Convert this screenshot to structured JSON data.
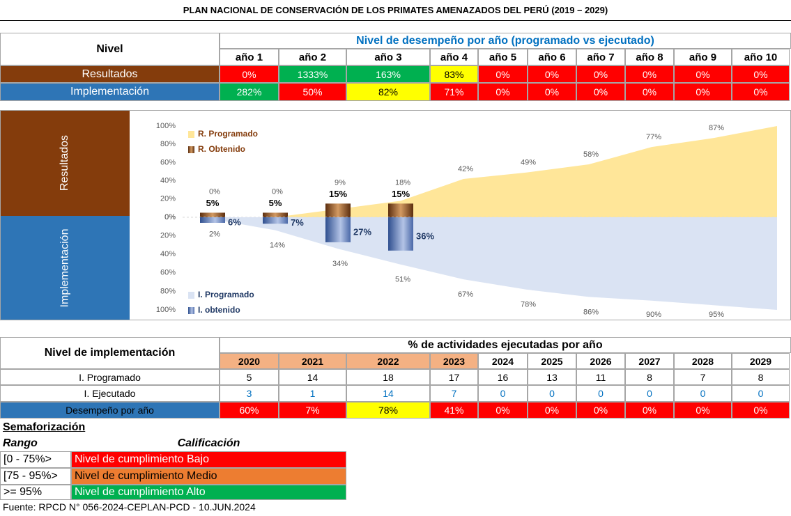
{
  "title": "PLAN NACIONAL DE CONSERVACIÓN DE LOS PRIMATES AMENAZADOS DEL PERÚ (2019 – 2029)",
  "performance_table": {
    "row_header": "Nivel",
    "group_header": "Nivel de desempeño por año (programado vs ejecutado)",
    "columns": [
      "año 1",
      "año 2",
      "año 3",
      "año 4",
      "año 5",
      "año 6",
      "año 7",
      "año 8",
      "año 9",
      "año 10"
    ],
    "rows": [
      {
        "label": "Resultados",
        "color": "#843c0c",
        "values": [
          "0%",
          "1333%",
          "163%",
          "83%",
          "0%",
          "0%",
          "0%",
          "0%",
          "0%",
          "0%"
        ],
        "colors": [
          "#ff0000",
          "#00b050",
          "#00b050",
          "#ffff00",
          "#ff0000",
          "#ff0000",
          "#ff0000",
          "#ff0000",
          "#ff0000",
          "#ff0000"
        ]
      },
      {
        "label": "Implementación",
        "color": "#2e75b6",
        "values": [
          "282%",
          "50%",
          "82%",
          "71%",
          "0%",
          "0%",
          "0%",
          "0%",
          "0%",
          "0%"
        ],
        "colors": [
          "#00b050",
          "#ff0000",
          "#ffff00",
          "#ff0000",
          "#ff0000",
          "#ff0000",
          "#ff0000",
          "#ff0000",
          "#ff0000",
          "#ff0000"
        ]
      }
    ]
  },
  "chart_data": [
    {
      "type": "area",
      "label": "Resultados",
      "label_color": "#843c0c",
      "inverted": false,
      "legend": "upper left",
      "ylim": [
        0,
        100
      ],
      "yticks": [
        {
          "value": 0,
          "label": "0%"
        },
        {
          "value": 20,
          "label": "20%"
        },
        {
          "value": 40,
          "label": "40%"
        },
        {
          "value": 60,
          "label": "60%"
        },
        {
          "value": 80,
          "label": "80%"
        },
        {
          "value": 100,
          "label": "100%"
        }
      ],
      "series": [
        {
          "name": "R. Programado",
          "type": "area",
          "color": "#ffe699",
          "values": [
            0,
            0,
            9,
            18,
            42,
            49,
            58,
            77,
            87,
            100
          ],
          "value_labels": [
            "0%",
            "0%",
            "9%",
            "18%",
            "42%",
            "49%",
            "58%",
            "77%",
            "87%",
            null
          ]
        },
        {
          "name": "R. Obtenido",
          "type": "bar",
          "color": "#8b4a1c",
          "values": [
            5,
            5,
            15,
            15
          ],
          "value_labels": [
            "5%",
            "5%",
            "15%",
            "15%"
          ]
        }
      ]
    },
    {
      "type": "area",
      "label": "Implementación",
      "label_color": "#2e75b6",
      "inverted": true,
      "legend": "lower left",
      "ylim": [
        0,
        100
      ],
      "yticks": [
        {
          "value": 0,
          "label": "0%"
        },
        {
          "value": 20,
          "label": "20%"
        },
        {
          "value": 40,
          "label": "40%"
        },
        {
          "value": 60,
          "label": "60%"
        },
        {
          "value": 80,
          "label": "80%"
        },
        {
          "value": 100,
          "label": "100%"
        }
      ],
      "series": [
        {
          "name": "I. Programado",
          "type": "area",
          "color": "#dae3f3",
          "values": [
            2,
            14,
            34,
            51,
            67,
            78,
            86,
            90,
            95,
            100
          ],
          "value_labels": [
            "2%",
            "14%",
            "34%",
            "51%",
            "67%",
            "78%",
            "86%",
            "90%",
            "95%",
            null
          ]
        },
        {
          "name": "I. obtenido",
          "type": "bar",
          "color": "#3a5a9c",
          "values": [
            6,
            7,
            27,
            36
          ],
          "value_labels": [
            "6%",
            "7%",
            "27%",
            "36%"
          ]
        }
      ]
    }
  ],
  "implementation_table": {
    "row_header": "Nivel de implementación",
    "group_header": "% de actividades ejecutadas por año",
    "columns": [
      "2020",
      "2021",
      "2022",
      "2023",
      "2024",
      "2025",
      "2026",
      "2027",
      "2028",
      "2029"
    ],
    "column_colors": [
      "#f4b183",
      "#f4b183",
      "#f4b183",
      "#f4b183",
      "#ffffff",
      "#ffffff",
      "#ffffff",
      "#ffffff",
      "#ffffff",
      "#ffffff"
    ],
    "rows": [
      {
        "label": "I. Programado",
        "values": [
          "5",
          "14",
          "18",
          "17",
          "16",
          "13",
          "11",
          "8",
          "7",
          "8"
        ]
      },
      {
        "label": "I. Ejecutado",
        "text_color": "#0070c0",
        "values": [
          "3",
          "1",
          "14",
          "7",
          "0",
          "0",
          "0",
          "0",
          "0",
          "0"
        ]
      },
      {
        "label": "Desempeño por año",
        "color": "#2e75b6",
        "values": [
          "60%",
          "7%",
          "78%",
          "41%",
          "0%",
          "0%",
          "0%",
          "0%",
          "0%",
          "0%"
        ],
        "colors": [
          "#ff0000",
          "#ff0000",
          "#ffff00",
          "#ff0000",
          "#ff0000",
          "#ff0000",
          "#ff0000",
          "#ff0000",
          "#ff0000",
          "#ff0000"
        ]
      }
    ]
  },
  "legend_table": {
    "title": "Semaforización",
    "headers": [
      "Rango",
      "Calificación"
    ],
    "rows": [
      {
        "range": "[0 - 75%>",
        "label": "Nivel de cumplimiento Bajo",
        "color": "#ff0000"
      },
      {
        "range": "[75 - 95%>",
        "label": "Nivel de cumplimiento Medio",
        "color": "#ed7d31"
      },
      {
        "range": ">= 95%",
        "label": "Nivel de cumplimiento Alto",
        "color": "#00b050"
      }
    ]
  },
  "source": "Fuente: RPCD N° 056-2024-CEPLAN-PCD - 10.JUN.2024"
}
